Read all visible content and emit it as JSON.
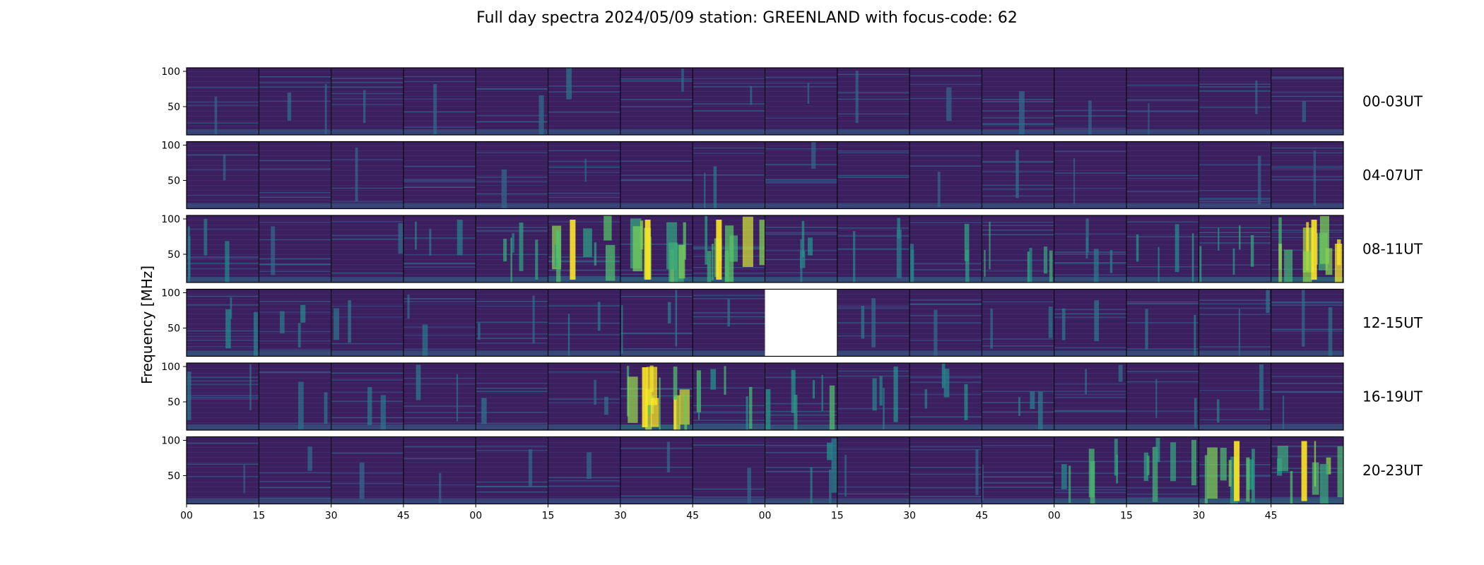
{
  "chart_data": {
    "type": "heatmap",
    "title": "Full day spectra 2024/05/09 station: GREENLAND with focus-code: 62",
    "ylabel": "Frequency [MHz]",
    "xlabel": "",
    "ylim": [
      10,
      105
    ],
    "y_ticks": [
      "100",
      "50"
    ],
    "x_ticks": [
      "00",
      "15",
      "30",
      "45",
      "00",
      "15",
      "30",
      "45",
      "00",
      "15",
      "30",
      "45",
      "00",
      "15",
      "30",
      "45"
    ],
    "colormap": "viridis",
    "colors": {
      "background": "#3b1f5e",
      "row_line": "#41306e",
      "medium": "#2a788e",
      "bright": "#22a884",
      "peak": "#fde725",
      "missing": "#ffffff"
    },
    "rows": [
      {
        "label": "00-03UT",
        "activity": [
          0.05,
          0.12,
          0.05,
          0.04,
          0.08,
          0.1,
          0.05,
          0.08,
          0.05,
          0.06,
          0.04,
          0.06,
          0.06,
          0.05,
          0.05,
          0.04
        ]
      },
      {
        "label": "04-07UT",
        "activity": [
          0.04,
          0.03,
          0.04,
          0.03,
          0.04,
          0.04,
          0.03,
          0.12,
          0.04,
          0.03,
          0.04,
          0.08,
          0.04,
          0.03,
          0.04,
          0.04
        ]
      },
      {
        "label": "08-11UT",
        "activity": [
          0.3,
          0.06,
          0.05,
          0.2,
          0.35,
          0.6,
          0.75,
          0.7,
          0.3,
          0.2,
          0.3,
          0.4,
          0.25,
          0.25,
          0.35,
          0.85
        ]
      },
      {
        "label": "12-15UT",
        "activity": [
          0.2,
          0.2,
          0.15,
          0.12,
          0.12,
          0.15,
          0.2,
          0.1,
          null,
          0.12,
          0.1,
          0.12,
          0.15,
          0.15,
          0.12,
          0.12
        ]
      },
      {
        "label": "16-19UT",
        "activity": [
          0.15,
          0.15,
          0.12,
          0.12,
          0.1,
          0.12,
          0.9,
          0.45,
          0.45,
          0.25,
          0.3,
          0.2,
          0.15,
          0.15,
          0.12,
          0.1
        ]
      },
      {
        "label": "20-23UT",
        "activity": [
          0.06,
          0.06,
          0.06,
          0.05,
          0.05,
          0.05,
          0.05,
          0.05,
          0.25,
          0.06,
          0.05,
          0.05,
          0.45,
          0.45,
          0.6,
          0.6
        ]
      }
    ]
  }
}
